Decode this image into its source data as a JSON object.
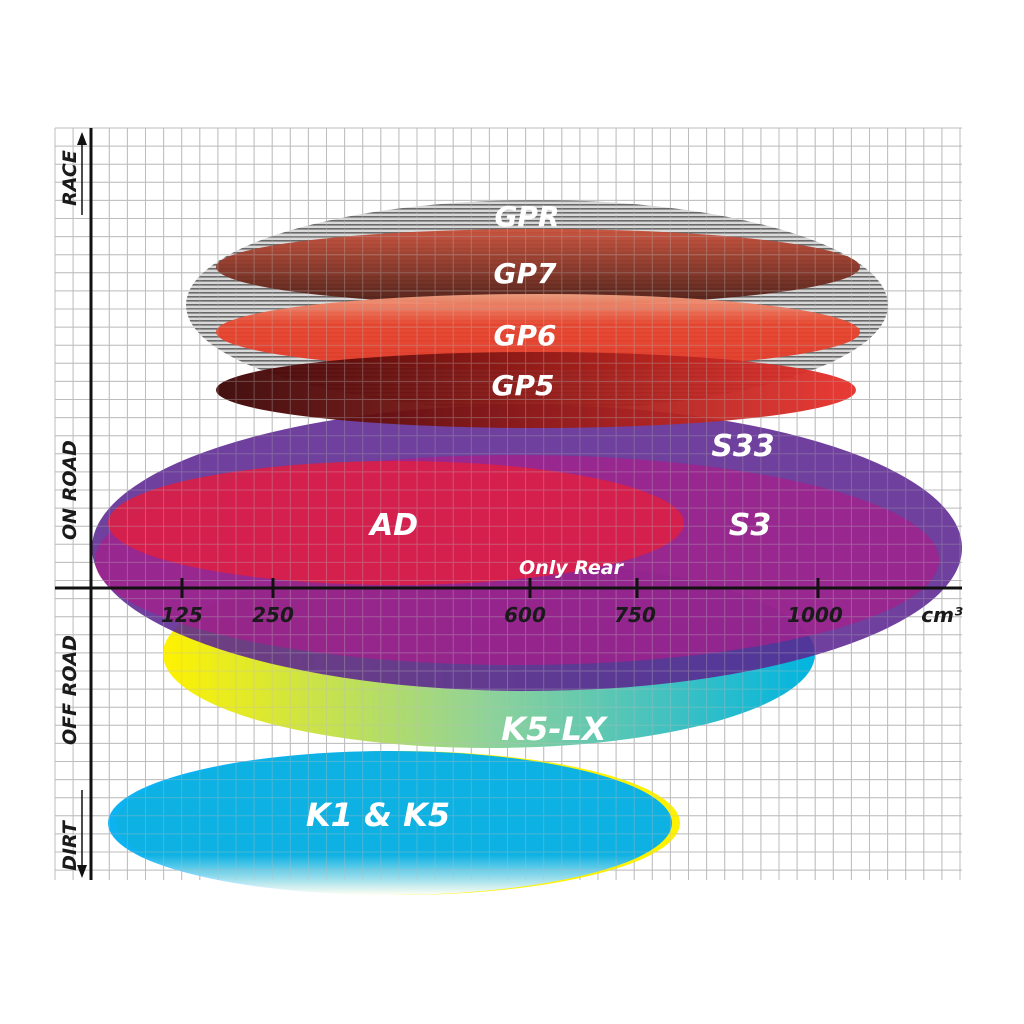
{
  "x_axis": {
    "unit": "cm³",
    "ticks": [
      "125",
      "250",
      "600",
      "750",
      "1000"
    ]
  },
  "y_axis": {
    "categories": [
      "RACE",
      "ON ROAD",
      "OFF ROAD",
      "DIRT"
    ]
  },
  "ranges": [
    {
      "label": "GPR",
      "color": "#9a9a9a"
    },
    {
      "label": "GP7",
      "color": "#7a2a1c"
    },
    {
      "label": "GP6",
      "color": "#e8432c"
    },
    {
      "label": "GP5",
      "color": "#5a0a08"
    },
    {
      "label": "S33",
      "color": "#5b2590"
    },
    {
      "label": "S3",
      "color": "#a2208c"
    },
    {
      "label": "AD",
      "color": "#dc1f46"
    },
    {
      "label": "Only Rear"
    },
    {
      "label": "K5-LX",
      "color": "#1bb8c8"
    },
    {
      "label": "K1 & K5",
      "color": "#00aeef"
    }
  ]
}
